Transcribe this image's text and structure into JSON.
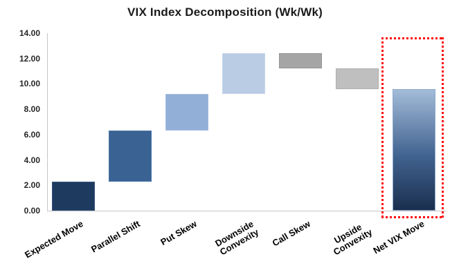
{
  "title": "VIX Index Decomposition (Wk/Wk)",
  "chart_data": {
    "type": "bar",
    "subtype": "waterfall",
    "title": "VIX Index Decomposition (Wk/Wk)",
    "xlabel": "",
    "ylabel": "",
    "ylim": [
      0,
      14
    ],
    "ytick_step": 2,
    "yticks": [
      "14.00",
      "12.00",
      "10.00",
      "8.00",
      "6.00",
      "4.00",
      "2.00",
      "0.00"
    ],
    "grid": false,
    "legend": false,
    "axis_color": "#C6C6C6",
    "categories": [
      "Expected Move",
      "Parallel Shift",
      "Put Skew",
      "Downside Convexity",
      "Call Skew",
      "Upside Convexity",
      "Net VIX Move"
    ],
    "segments": [
      {
        "label": "Expected Move",
        "lines": [
          "Expected Move"
        ],
        "start": 0,
        "end": 2.3,
        "delta": 2.3,
        "color": "#1E3A5F",
        "border": "#33517B"
      },
      {
        "label": "Parallel Shift",
        "lines": [
          "Parallel Shift"
        ],
        "start": 2.3,
        "end": 6.3,
        "delta": 4.0,
        "color": "#3A6394",
        "border": "#4A74A6"
      },
      {
        "label": "Put Skew",
        "lines": [
          "Put Skew"
        ],
        "start": 6.3,
        "end": 9.2,
        "delta": 2.9,
        "color": "#92AFD7",
        "border": "#A4BDE0"
      },
      {
        "label": "Downside Convexity",
        "lines": [
          "Downside",
          "Convexity"
        ],
        "start": 9.2,
        "end": 12.4,
        "delta": 3.2,
        "color": "#B9CCE4",
        "border": "#C6D5EA"
      },
      {
        "label": "Call Skew",
        "lines": [
          "Call Skew"
        ],
        "start": 12.4,
        "end": 11.2,
        "delta": -1.2,
        "color": "#A5A5A5",
        "border": "#949494"
      },
      {
        "label": "Upside Convexity",
        "lines": [
          "Upside",
          "Convexity"
        ],
        "start": 11.2,
        "end": 9.6,
        "delta": -1.6,
        "color": "#BFBFBF",
        "border": "#ADADAD"
      },
      {
        "label": "Net VIX Move",
        "lines": [
          "Net VIX Move"
        ],
        "start": 0,
        "end": 9.6,
        "delta": 9.6,
        "is_total": true,
        "highlighted": true,
        "gradient": [
          "#A3BBD8",
          "#416390",
          "#1A2F4E"
        ],
        "border": "#8FA9CC"
      }
    ],
    "highlight_box": {
      "color": "#FF0000",
      "style": "square-dotted"
    }
  }
}
